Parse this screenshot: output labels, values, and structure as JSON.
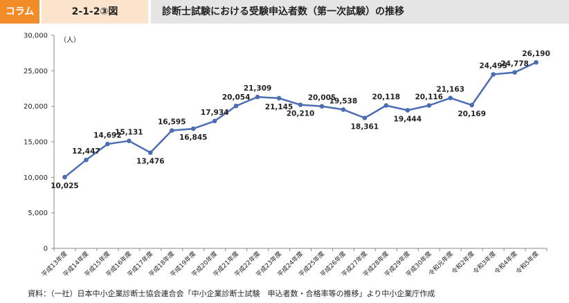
{
  "header": {
    "badge": "コラム",
    "figure_number": "2-1-2③図",
    "title": "診断士試験における受験申込者数（第一次試験）の推移"
  },
  "footer": {
    "source": "資料：（一社）日本中小企業診断士協会連合会「中小企業診断士試験　申込者数・合格率等の推移」より中小企業庁作成"
  },
  "colors": {
    "line": "#4a6db3",
    "badge": "#f28c28",
    "figno_bg": "#fbe3cc",
    "title_bg": "#e5e5e5"
  },
  "chart_data": {
    "type": "line",
    "title": "診断士試験における受験申込者数（第一次試験）の推移",
    "unit_label": "（人）",
    "xlabel": "",
    "ylabel": "",
    "ylim": [
      0,
      30000
    ],
    "yticks": [
      0,
      5000,
      10000,
      15000,
      20000,
      25000,
      30000
    ],
    "ytick_labels": [
      "0",
      "5,000",
      "10,000",
      "15,000",
      "20,000",
      "25,000",
      "30,000"
    ],
    "grid": false,
    "categories": [
      "平成13年度",
      "平成14年度",
      "平成15年度",
      "平成16年度",
      "平成17年度",
      "平成18年度",
      "平成19年度",
      "平成20年度",
      "平成21年度",
      "平成22年度",
      "平成23年度",
      "平成24年度",
      "平成25年度",
      "平成26年度",
      "平成27年度",
      "平成28年度",
      "平成29年度",
      "平成30年度",
      "令和元年度",
      "令和2年度",
      "令和3年度",
      "令和4年度",
      "令和5年度"
    ],
    "series": [
      {
        "name": "受験申込者数",
        "values": [
          10025,
          12447,
          14692,
          15131,
          13476,
          16595,
          16845,
          17934,
          20054,
          21309,
          21145,
          20210,
          20005,
          19538,
          18361,
          20118,
          19444,
          20116,
          21163,
          20169,
          24495,
          24778,
          26190
        ],
        "value_labels": [
          "10,025",
          "12,447",
          "14,692",
          "15,131",
          "13,476",
          "16,595",
          "16,845",
          "17,934",
          "20,054",
          "21,309",
          "21,145",
          "20,210",
          "20,005",
          "19,538",
          "18,361",
          "20,118",
          "19,444",
          "20,116",
          "21,163",
          "20,169",
          "24,495",
          "24,778",
          "26,190"
        ],
        "label_positions": [
          "below",
          "above",
          "above",
          "above",
          "below",
          "above",
          "below",
          "above",
          "above",
          "above",
          "below",
          "below",
          "above",
          "above",
          "below",
          "above",
          "below",
          "above",
          "above",
          "below",
          "above",
          "above",
          "above"
        ]
      }
    ]
  }
}
